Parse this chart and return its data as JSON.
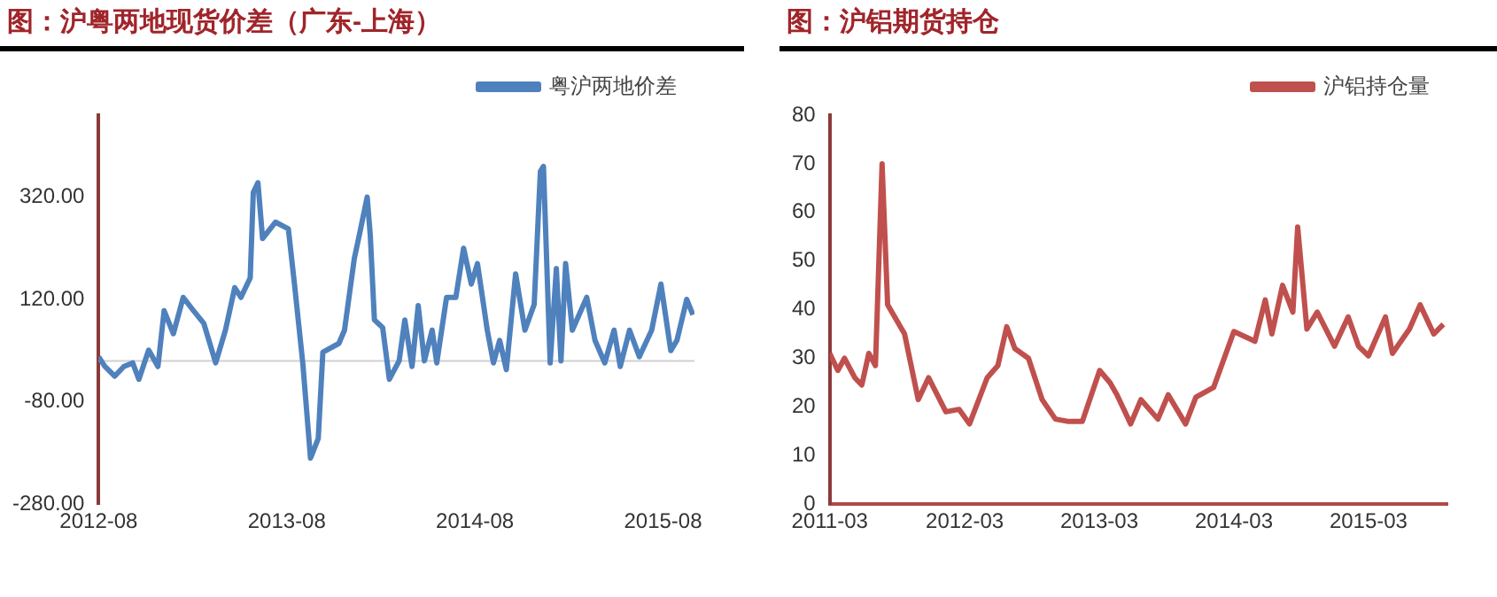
{
  "chart_data": [
    {
      "type": "line",
      "title": "图：沪粤两地现货价差（广东-上海）",
      "legend": "top right",
      "marker": "none",
      "grid": false,
      "xlim": [
        "2012-08",
        "2015-10"
      ],
      "xticks": [
        "2012-08",
        "2013-08",
        "2014-08",
        "2015-08"
      ],
      "ylim": [
        -280,
        480
      ],
      "yticks": [
        {
          "value": -280,
          "label": "-280.00"
        },
        {
          "value": -80,
          "label": "-80.00"
        },
        {
          "value": 120,
          "label": "120.00"
        },
        {
          "value": 320,
          "label": "320.00"
        }
      ],
      "ref_lines": [
        {
          "axis": "y",
          "value": 0,
          "label": null,
          "color": "#d0d0d0"
        }
      ],
      "series": [
        {
          "name": "粤沪两地价差",
          "color": "#4f81bd",
          "x": [
            "2012-08-01",
            "2012-08-13",
            "2012-09-01",
            "2012-09-19",
            "2012-10-06",
            "2012-10-18",
            "2012-11-06",
            "2012-11-24",
            "2012-12-06",
            "2012-12-24",
            "2013-01-12",
            "2013-02-01",
            "2013-02-21",
            "2013-03-16",
            "2013-04-04",
            "2013-04-22",
            "2013-05-04",
            "2013-05-22",
            "2013-05-28",
            "2013-06-06",
            "2013-06-15",
            "2013-07-10",
            "2013-08-04",
            "2013-08-16",
            "2013-09-01",
            "2013-09-16",
            "2013-10-01",
            "2013-10-10",
            "2013-11-10",
            "2013-11-21",
            "2013-12-10",
            "2013-12-21",
            "2014-01-04",
            "2014-01-10",
            "2014-01-18",
            "2014-02-03",
            "2014-02-16",
            "2014-03-07",
            "2014-03-18",
            "2014-04-01",
            "2014-04-13",
            "2014-04-25",
            "2014-05-10",
            "2014-05-19",
            "2014-06-07",
            "2014-06-25",
            "2014-07-10",
            "2014-07-25",
            "2014-08-06",
            "2014-08-25",
            "2014-09-06",
            "2014-09-18",
            "2014-10-01",
            "2014-10-19",
            "2014-11-06",
            "2014-11-24",
            "2014-12-06",
            "2014-12-12",
            "2014-12-25",
            "2015-01-06",
            "2015-01-15",
            "2015-01-24",
            "2015-02-06",
            "2015-03-06",
            "2015-03-22",
            "2015-04-10",
            "2015-04-28",
            "2015-05-10",
            "2015-05-28",
            "2015-06-16",
            "2015-07-10",
            "2015-07-28",
            "2015-08-16",
            "2015-08-28",
            "2015-09-16",
            "2015-09-28"
          ],
          "values": [
            8,
            -11,
            -30,
            -11,
            -4,
            -36,
            21,
            -11,
            98,
            53,
            124,
            98,
            73,
            -4,
            60,
            143,
            124,
            162,
            329,
            348,
            239,
            271,
            258,
            149,
            -4,
            -190,
            -152,
            17,
            34,
            60,
            200,
            252,
            320,
            245,
            80,
            65,
            -36,
            0,
            80,
            -11,
            108,
            0,
            60,
            -4,
            124,
            124,
            220,
            150,
            190,
            60,
            -4,
            40,
            -17,
            170,
            60,
            110,
            370,
            380,
            -4,
            180,
            0,
            190,
            60,
            124,
            40,
            -4,
            60,
            -11,
            60,
            8,
            60,
            150,
            20,
            40,
            120,
            90
          ]
        }
      ]
    },
    {
      "type": "line",
      "title": "图：沪铝期货持仓",
      "legend": "top right",
      "marker": "none",
      "grid": false,
      "xlim": [
        "2011-03",
        "2015-10"
      ],
      "xticks": [
        "2011-03",
        "2012-03",
        "2013-03",
        "2014-03",
        "2015-03"
      ],
      "ylim": [
        0,
        80
      ],
      "yticks": [
        0,
        10,
        20,
        30,
        40,
        50,
        60,
        70,
        80
      ],
      "series": [
        {
          "name": "沪铝持仓量",
          "color": "#c0504d",
          "x": [
            "2011-03-01",
            "2011-03-23",
            "2011-04-10",
            "2011-05-08",
            "2011-05-27",
            "2011-06-15",
            "2011-07-03",
            "2011-07-21",
            "2011-08-05",
            "2011-09-20",
            "2011-10-27",
            "2011-11-24",
            "2012-01-10",
            "2012-02-15",
            "2012-03-14",
            "2012-05-01",
            "2012-05-30",
            "2012-06-23",
            "2012-07-15",
            "2012-08-21",
            "2012-09-27",
            "2012-11-02",
            "2012-12-08",
            "2013-01-14",
            "2013-03-02",
            "2013-03-30",
            "2013-04-18",
            "2013-05-25",
            "2013-06-22",
            "2013-08-07",
            "2013-09-04",
            "2013-10-21",
            "2013-11-18",
            "2014-01-05",
            "2014-03-01",
            "2014-04-27",
            "2014-05-25",
            "2014-06-12",
            "2014-07-11",
            "2014-08-08",
            "2014-08-21",
            "2014-09-15",
            "2014-10-13",
            "2014-11-29",
            "2015-01-05",
            "2015-02-02",
            "2015-03-01",
            "2015-04-16",
            "2015-05-05",
            "2015-06-20",
            "2015-07-19",
            "2015-08-25",
            "2015-09-20"
          ],
          "values": [
            31,
            27.5,
            30,
            26,
            24.5,
            31,
            28.5,
            70,
            41,
            35,
            21.5,
            26,
            19,
            19.5,
            16.5,
            26,
            28.5,
            36.5,
            32,
            30,
            21.5,
            17.5,
            17,
            17,
            27.5,
            25,
            22.5,
            16.5,
            21.5,
            17.5,
            22.5,
            16.5,
            22,
            24,
            35.5,
            33.5,
            42,
            35,
            45,
            39.5,
            57,
            36,
            39.5,
            32.5,
            38.5,
            32.5,
            30.5,
            38.5,
            31,
            36,
            41,
            35,
            37
          ]
        }
      ]
    }
  ]
}
